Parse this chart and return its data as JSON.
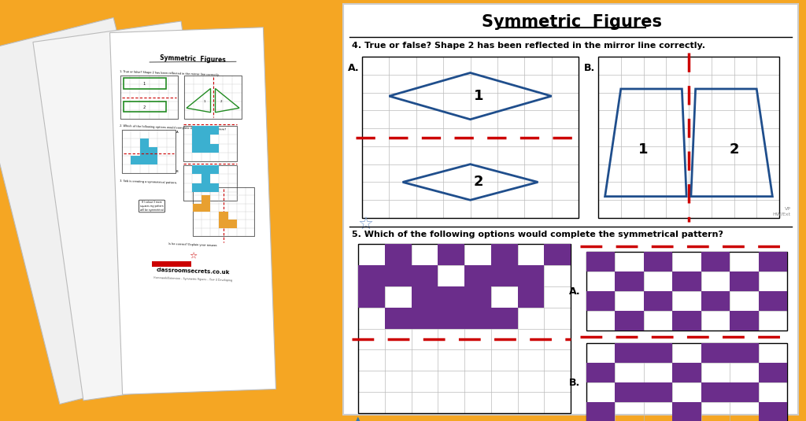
{
  "bg_color": "#F5A623",
  "paper_color": "#FFFFFF",
  "title": "Symmetric  Figures",
  "q4_text": "4. True or false? Shape 2 has been reflected in the mirror line correctly.",
  "q5_text": "5. Which of the following options would complete the symmetrical pattern?",
  "blue_color": "#1F4E8C",
  "red_color": "#CC0000",
  "purple_color": "#6B2D8B",
  "grid_color": "#AAAAAA",
  "star_color": "#7799CC",
  "green_color": "#228B22",
  "blue_cyan": "#3BB0D0",
  "orange_color": "#E8A030"
}
